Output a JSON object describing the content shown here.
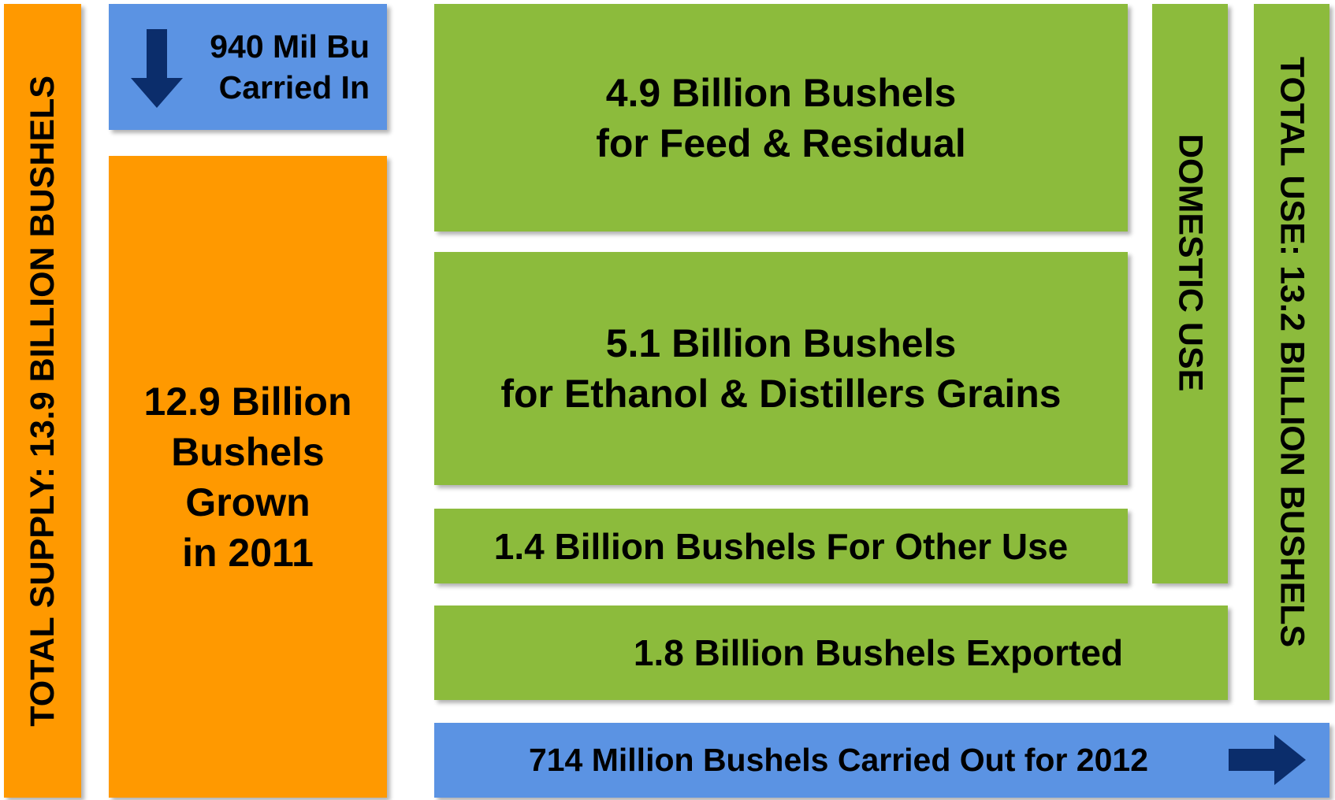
{
  "supply": {
    "total": "TOTAL SUPPLY: 13.9 BILLION BUSHELS",
    "carried_in": [
      "940 Mil Bu",
      "Carried In"
    ],
    "grown": [
      "12.9 Billion",
      "Bushels",
      "Grown",
      "in 2011"
    ]
  },
  "use": {
    "feed": [
      "4.9 Billion Bushels",
      "for Feed & Residual"
    ],
    "ethanol": [
      "5.1 Billion Bushels",
      "for Ethanol & Distillers Grains"
    ],
    "other": "1.4 Billion Bushels For Other Use",
    "domestic": "DOMESTIC USE",
    "exported": "1.8 Billion Bushels Exported",
    "total": "TOTAL USE: 13.2 BILLION BUSHELS",
    "carried_out": "714 Million Bushels Carried Out for 2012"
  }
}
